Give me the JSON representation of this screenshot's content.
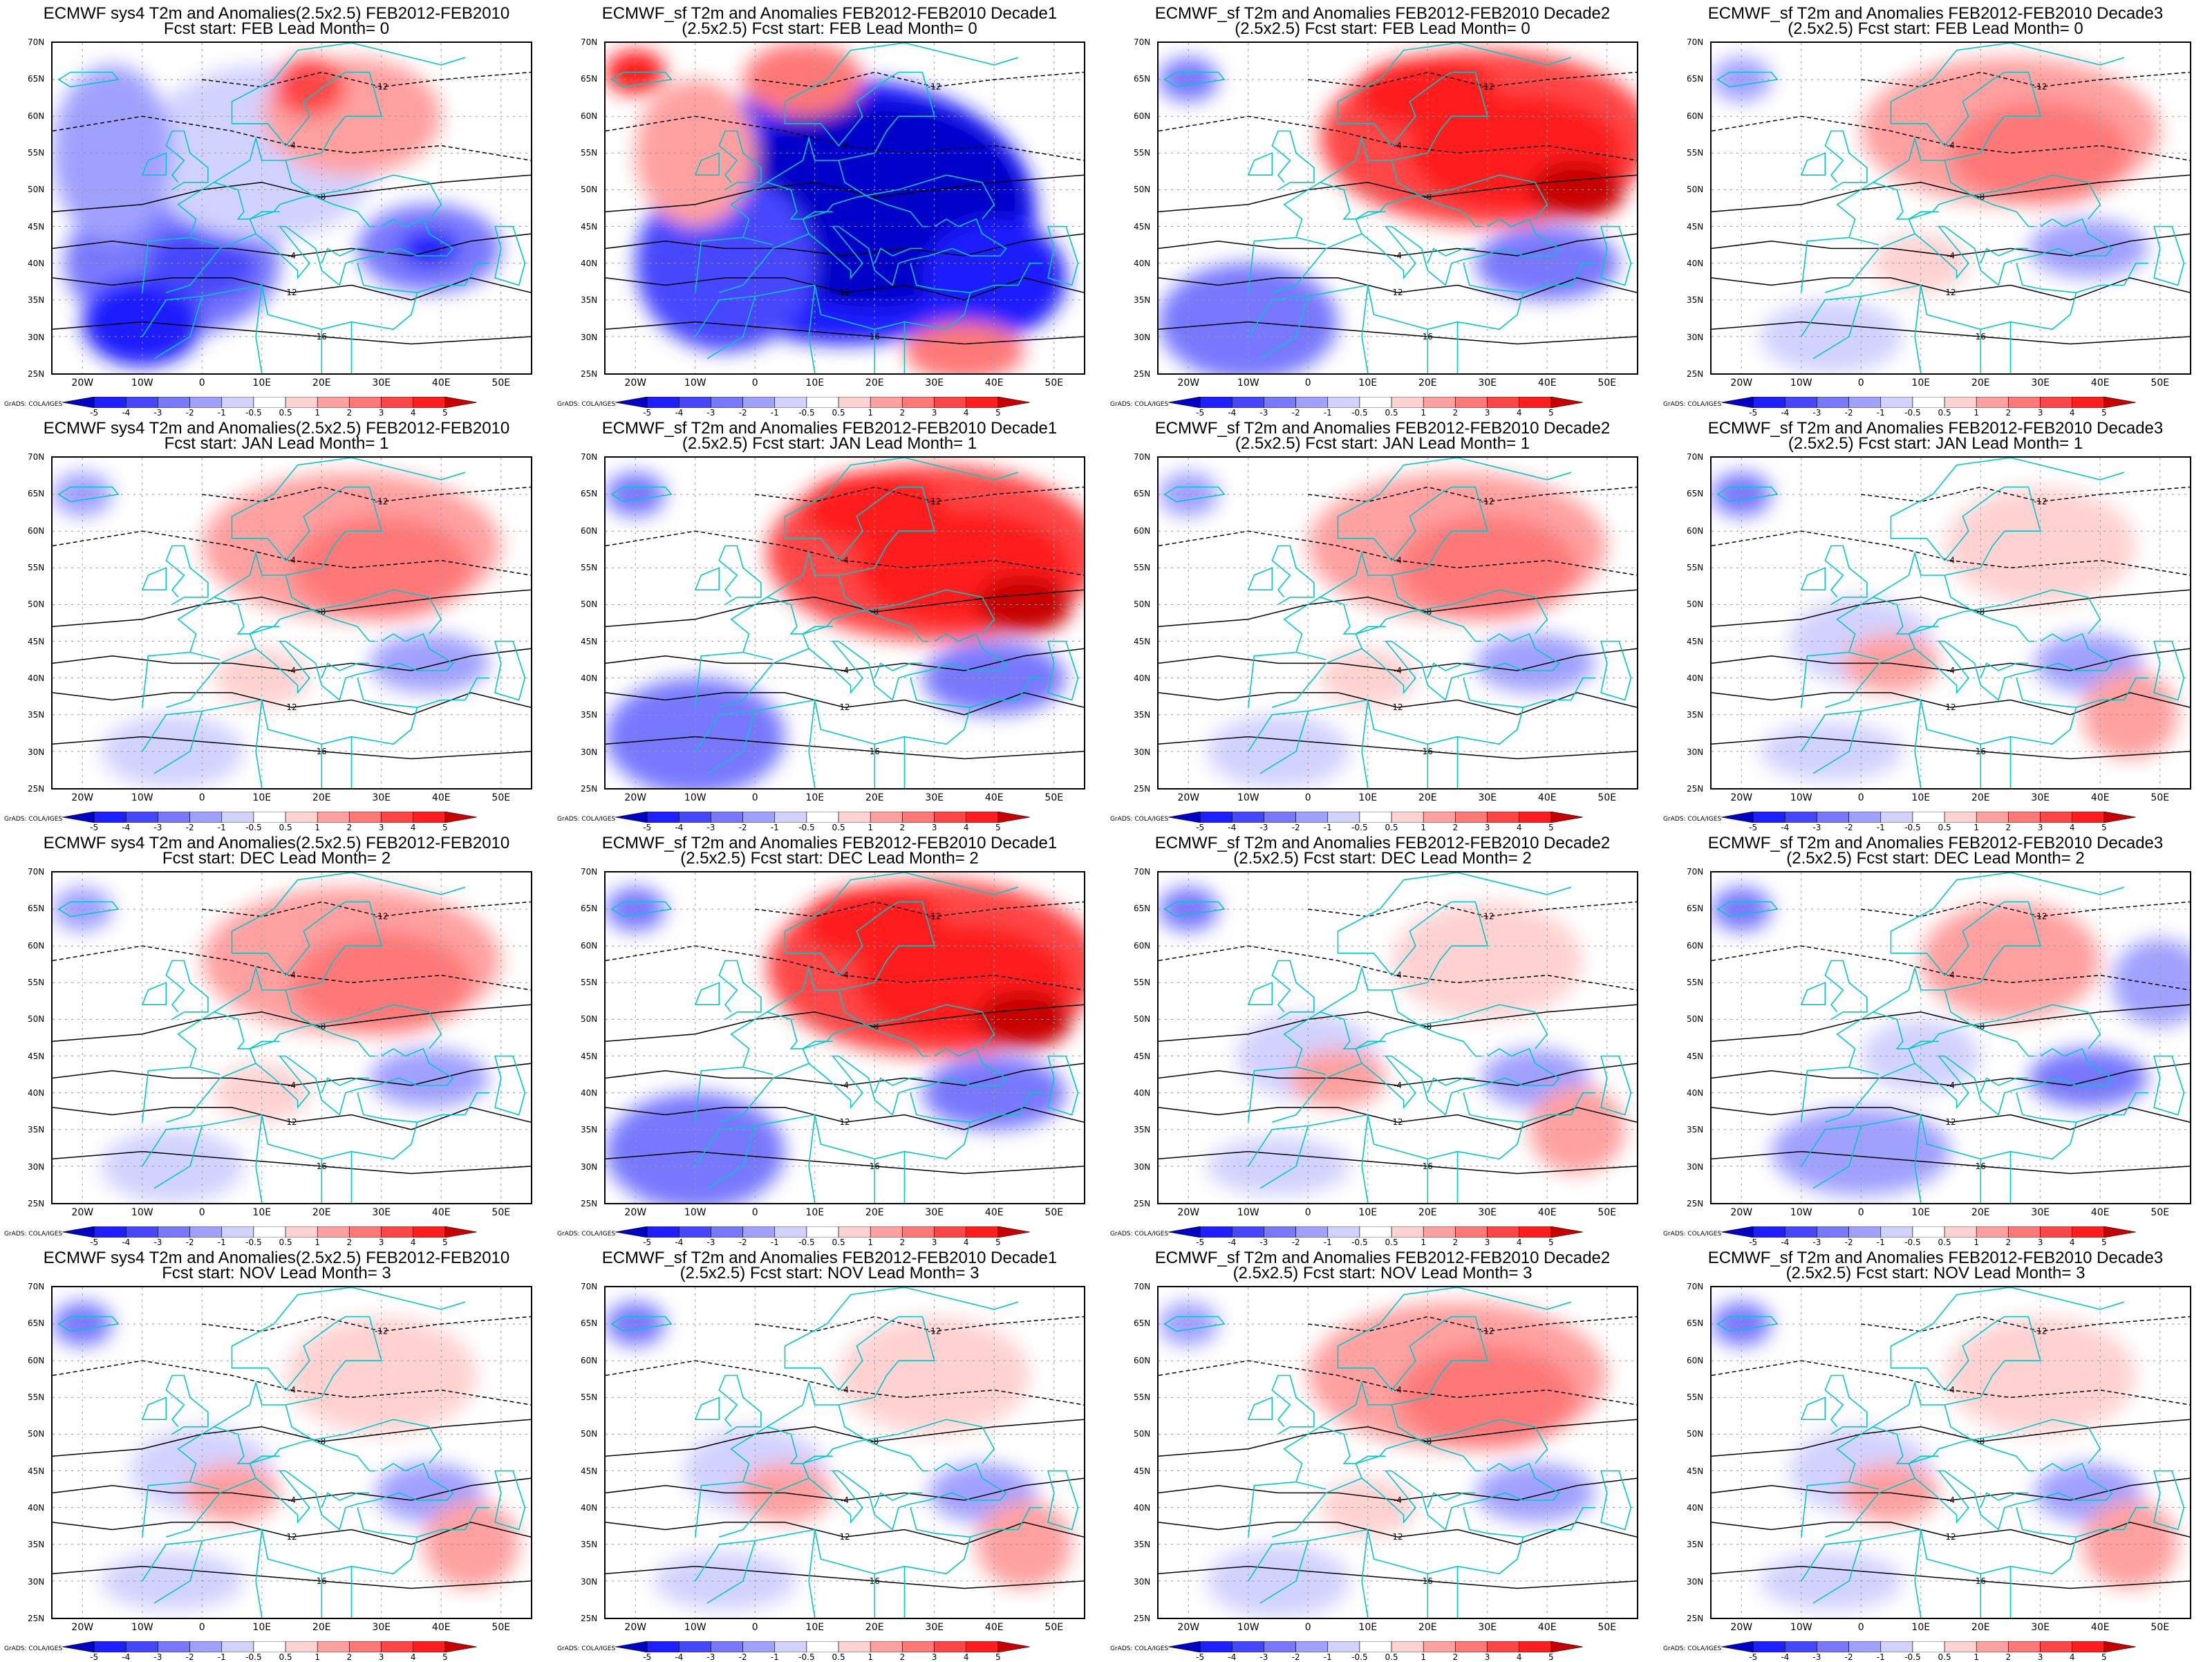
{
  "figure": {
    "columns": 4,
    "rows": 4
  },
  "panels": [
    {
      "line1": "ECMWF sys4 T2m and Anomalies(2.5x2.5) FEB2012-FEB2010",
      "line2": "Fcst start: FEB  Lead Month= 0",
      "anomaly_pattern": "cold-strong"
    },
    {
      "line1": "ECMWF_sf T2m and Anomalies FEB2012-FEB2010 Decade1",
      "line2": "(2.5x2.5) Fcst start: FEB  Lead Month= 0",
      "anomaly_pattern": "cold-extreme"
    },
    {
      "line1": "ECMWF_sf T2m and Anomalies FEB2012-FEB2010 Decade2",
      "line2": "(2.5x2.5) Fcst start: FEB  Lead Month= 0",
      "anomaly_pattern": "warm-northeast"
    },
    {
      "line1": "ECMWF_sf T2m and Anomalies FEB2012-FEB2010 Decade3",
      "line2": "(2.5x2.5) Fcst start: FEB  Lead Month= 0",
      "anomaly_pattern": "warm-mild"
    },
    {
      "line1": "ECMWF sys4 T2m and Anomalies(2.5x2.5) FEB2012-FEB2010",
      "line2": "Fcst start: JAN  Lead Month= 1",
      "anomaly_pattern": "warm-mild"
    },
    {
      "line1": "ECMWF_sf T2m and Anomalies FEB2012-FEB2010 Decade1",
      "line2": "(2.5x2.5) Fcst start: JAN  Lead Month= 1",
      "anomaly_pattern": "warm-northeast"
    },
    {
      "line1": "ECMWF_sf T2m and Anomalies FEB2012-FEB2010 Decade2",
      "line2": "(2.5x2.5) Fcst start: JAN  Lead Month= 1",
      "anomaly_pattern": "warm-mild"
    },
    {
      "line1": "ECMWF_sf T2m and Anomalies FEB2012-FEB2010 Decade3",
      "line2": "(2.5x2.5) Fcst start: JAN  Lead Month= 1",
      "anomaly_pattern": "mixed"
    },
    {
      "line1": "ECMWF sys4 T2m and Anomalies(2.5x2.5) FEB2012-FEB2010",
      "line2": "Fcst start: DEC  Lead Month= 2",
      "anomaly_pattern": "warm-mild"
    },
    {
      "line1": "ECMWF_sf T2m and Anomalies FEB2012-FEB2010 Decade1",
      "line2": "(2.5x2.5) Fcst start: DEC  Lead Month= 2",
      "anomaly_pattern": "warm-northeast"
    },
    {
      "line1": "ECMWF_sf T2m and Anomalies FEB2012-FEB2010 Decade2",
      "line2": "(2.5x2.5) Fcst start: DEC  Lead Month= 2",
      "anomaly_pattern": "mixed"
    },
    {
      "line1": "ECMWF_sf T2m and Anomalies FEB2012-FEB2010 Decade3",
      "line2": "(2.5x2.5) Fcst start: DEC  Lead Month= 2",
      "anomaly_pattern": "mixed-cold"
    },
    {
      "line1": "ECMWF sys4 T2m and Anomalies(2.5x2.5) FEB2012-FEB2010",
      "line2": "Fcst start: NOV  Lead Month= 3",
      "anomaly_pattern": "mixed"
    },
    {
      "line1": "ECMWF_sf T2m and Anomalies FEB2012-FEB2010 Decade1",
      "line2": "(2.5x2.5) Fcst start: NOV  Lead Month= 3",
      "anomaly_pattern": "mixed"
    },
    {
      "line1": "ECMWF_sf T2m and Anomalies FEB2012-FEB2010 Decade2",
      "line2": "(2.5x2.5) Fcst start: NOV  Lead Month= 3",
      "anomaly_pattern": "warm-mild"
    },
    {
      "line1": "ECMWF_sf T2m and Anomalies FEB2012-FEB2010 Decade3",
      "line2": "(2.5x2.5) Fcst start: NOV  Lead Month= 3",
      "anomaly_pattern": "mixed"
    }
  ],
  "axes": {
    "lat_labels": [
      "70N",
      "65N",
      "60N",
      "55N",
      "50N",
      "45N",
      "40N",
      "35N",
      "30N",
      "25N"
    ],
    "lon_labels": [
      "20W",
      "10W",
      "0",
      "10E",
      "20E",
      "30E",
      "40E",
      "50E"
    ]
  },
  "colorbar": {
    "labels": [
      "-5",
      "-4",
      "-3",
      "-2",
      "-1",
      "-0.5",
      "0.5",
      "1",
      "2",
      "3",
      "4",
      "5"
    ],
    "colors": [
      "#0000c8",
      "#1e1eff",
      "#4646ff",
      "#7878ff",
      "#a0a0ff",
      "#d2d2ff",
      "#ffffff",
      "#ffd2d2",
      "#ffa0a0",
      "#ff7878",
      "#ff4646",
      "#ff1e1e",
      "#c80000"
    ],
    "credit": "GrADS: COLA/IGES"
  },
  "colors": {
    "coastline": "#00c8c8",
    "contour": "#000000"
  }
}
